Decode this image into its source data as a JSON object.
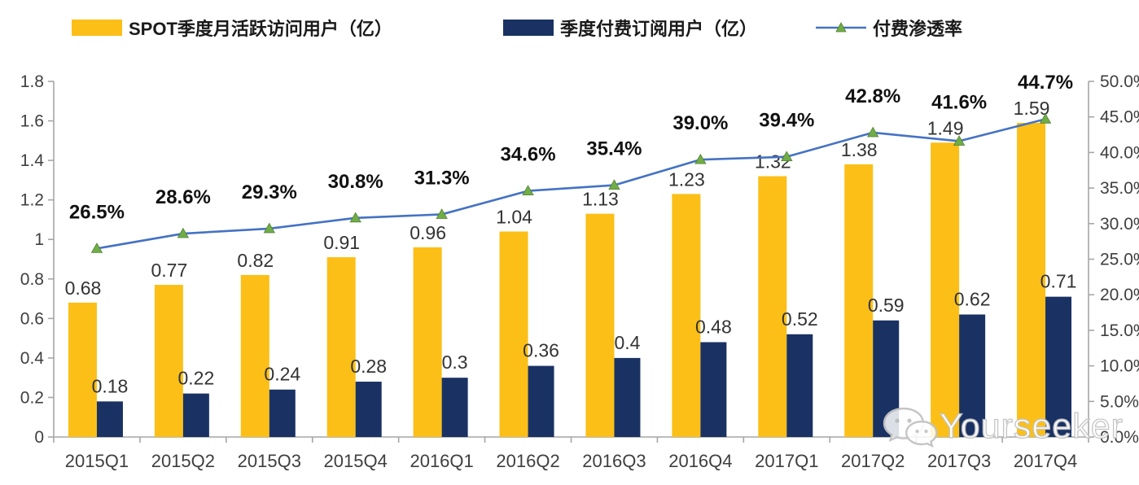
{
  "legend": {
    "items": [
      {
        "label": "SPOT季度月活跃访问用户（亿）",
        "swatch": "yellow-bar-swatch"
      },
      {
        "label": "季度付费订阅用户（亿）",
        "swatch": "navy-bar-swatch"
      },
      {
        "label": "付费渗透率",
        "swatch": "line-marker-swatch"
      }
    ]
  },
  "watermark": {
    "text": "Yourseeker",
    "icon": "chat-bubbles-icon"
  },
  "colors": {
    "mau_bar": "#FBBF17",
    "sub_bar": "#1A3263",
    "line": "#4472C4",
    "marker": "#70AD47",
    "marker_edge": "#538135",
    "axis": "#A6A6A6",
    "tick_label": "#3F3F3F",
    "value_label": "#333333",
    "pct_label": "#111111"
  },
  "chart_data": {
    "type": "bar",
    "subtype": "bar+line combo, dual axis",
    "title": "",
    "grid": false,
    "legend_position": "top",
    "categories": [
      "2015Q1",
      "2015Q2",
      "2015Q3",
      "2015Q4",
      "2016Q1",
      "2016Q2",
      "2016Q3",
      "2016Q4",
      "2017Q1",
      "2017Q2",
      "2017Q3",
      "2017Q4"
    ],
    "series": [
      {
        "name": "SPOT季度月活跃访问用户（亿）",
        "type": "bar",
        "axis": "left",
        "values": [
          0.68,
          0.77,
          0.82,
          0.91,
          0.96,
          1.04,
          1.13,
          1.23,
          1.32,
          1.38,
          1.49,
          1.59
        ],
        "labels": [
          "0.68",
          "0.77",
          "0.82",
          "0.91",
          "0.96",
          "1.04",
          "1.13",
          "1.23",
          "1.32",
          "1.38",
          "1.49",
          "1.59"
        ]
      },
      {
        "name": "季度付费订阅用户（亿）",
        "type": "bar",
        "axis": "left",
        "values": [
          0.18,
          0.22,
          0.24,
          0.28,
          0.3,
          0.36,
          0.4,
          0.48,
          0.52,
          0.59,
          0.62,
          0.71
        ],
        "labels": [
          "0.18",
          "0.22",
          "0.24",
          "0.28",
          "0.3",
          "0.36",
          "0.4",
          "0.48",
          "0.52",
          "0.59",
          "0.62",
          "0.71"
        ]
      },
      {
        "name": "付费渗透率",
        "type": "line",
        "axis": "right",
        "values": [
          26.5,
          28.6,
          29.3,
          30.8,
          31.3,
          34.6,
          35.4,
          39.0,
          39.4,
          42.8,
          41.6,
          44.7
        ],
        "labels": [
          "26.5%",
          "28.6%",
          "29.3%",
          "30.8%",
          "31.3%",
          "34.6%",
          "35.4%",
          "39.0%",
          "39.4%",
          "42.8%",
          "41.6%",
          "44.7%"
        ]
      }
    ],
    "left_axis": {
      "min": 0,
      "max": 1.8,
      "step": 0.2,
      "tick_labels": [
        "0",
        "0.2",
        "0.4",
        "0.6",
        "0.8",
        "1",
        "1.2",
        "1.4",
        "1.6",
        "1.8"
      ]
    },
    "right_axis": {
      "min": 0,
      "max": 50,
      "step": 5,
      "tick_labels": [
        "0.0%",
        "5.0%",
        "10.0%",
        "15.0%",
        "20.0%",
        "25.0%",
        "30.0%",
        "35.0%",
        "40.0%",
        "45.0%",
        "50.0%"
      ]
    }
  }
}
